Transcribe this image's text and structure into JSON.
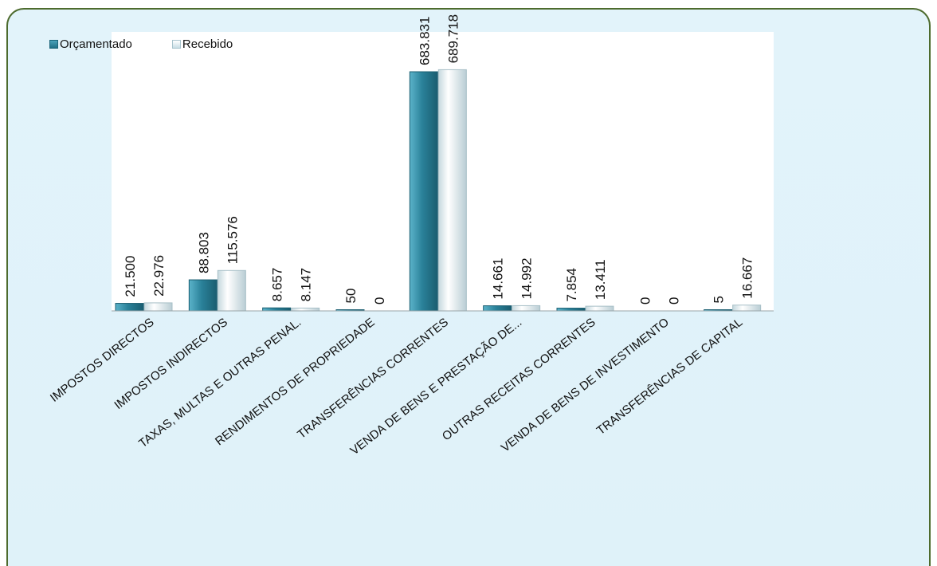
{
  "chart_data": {
    "type": "bar",
    "categories": [
      "IMPOSTOS DIRECTOS",
      "IMPOSTOS INDIRECTOS",
      "TAXAS, MULTAS E OUTRAS PENAL.",
      "RENDIMENTOS DE PROPRIEDADE",
      "TRANSFERÊNCIAS CORRENTES",
      "VENDA DE BENS E PRESTAÇÃO DE...",
      "OUTRAS RECEITAS CORRENTES",
      "VENDA DE BENS DE INVESTIMENTO",
      "TRANSFERÊNCIAS DE CAPITAL"
    ],
    "series": [
      {
        "name": "Orçamentado",
        "values": [
          21500,
          88803,
          8657,
          50,
          683831,
          14661,
          7854,
          0,
          5
        ],
        "labels": [
          "21.500",
          "88.803",
          "8.657",
          "50",
          "683.831",
          "14.661",
          "7.854",
          "0",
          "5"
        ],
        "color": "#2a8199"
      },
      {
        "name": "Recebido",
        "values": [
          22976,
          115576,
          8147,
          0,
          689718,
          14992,
          13411,
          0,
          16667
        ],
        "labels": [
          "22.976",
          "115.576",
          "8.147",
          "0",
          "689.718",
          "14.992",
          "13.411",
          "0",
          "16.667"
        ],
        "color": "#e8f1f4"
      }
    ],
    "ylim": [
      0,
      700000
    ],
    "legend_position": "top-left",
    "grid": false
  }
}
